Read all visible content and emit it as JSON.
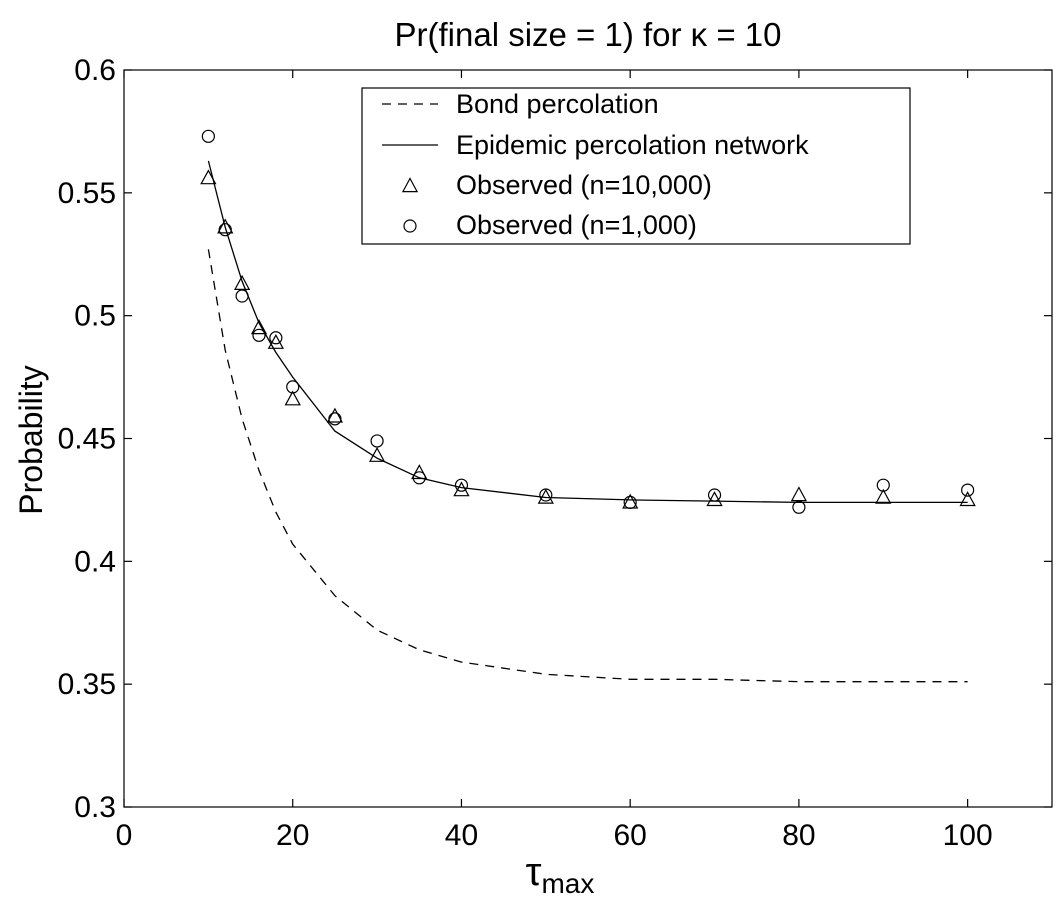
{
  "chart_data": {
    "type": "line",
    "title": "Pr(final size = 1) for κ = 10",
    "xlabel_main": "τ",
    "xlabel_sub": "max",
    "ylabel": "Probability",
    "xlim": [
      0,
      110
    ],
    "ylim": [
      0.3,
      0.6
    ],
    "x_ticks": [
      0,
      20,
      40,
      60,
      80,
      100
    ],
    "x_tick_labels": [
      "0",
      "20",
      "40",
      "60",
      "80",
      "100"
    ],
    "y_ticks": [
      0.3,
      0.35,
      0.4,
      0.45,
      0.5,
      0.55,
      0.6
    ],
    "y_tick_labels": [
      "0.3",
      "0.35",
      "0.4",
      "0.45",
      "0.5",
      "0.55",
      "0.6"
    ],
    "grid": false,
    "legend_position": "top-right",
    "series": [
      {
        "name": "Bond percolation",
        "style": "dashed-line",
        "x": [
          10,
          12,
          14,
          16,
          18,
          20,
          25,
          30,
          35,
          40,
          50,
          60,
          70,
          80,
          90,
          100
        ],
        "y": [
          0.527,
          0.486,
          0.458,
          0.437,
          0.42,
          0.407,
          0.386,
          0.372,
          0.364,
          0.359,
          0.354,
          0.352,
          0.352,
          0.351,
          0.351,
          0.351
        ]
      },
      {
        "name": "Epidemic percolation network",
        "style": "solid-line",
        "x": [
          10,
          12,
          14,
          16,
          18,
          20,
          25,
          30,
          35,
          40,
          50,
          60,
          70,
          80,
          90,
          100
        ],
        "y": [
          0.563,
          0.536,
          0.514,
          0.497,
          0.485,
          0.475,
          0.453,
          0.442,
          0.434,
          0.43,
          0.426,
          0.425,
          0.4245,
          0.424,
          0.424,
          0.424
        ]
      },
      {
        "name": "Observed (n=10,000)",
        "style": "triangle-marker",
        "x": [
          10,
          12,
          14,
          16,
          18,
          20,
          25,
          30,
          35,
          40,
          50,
          60,
          70,
          80,
          90,
          100
        ],
        "y": [
          0.556,
          0.536,
          0.513,
          0.495,
          0.489,
          0.466,
          0.459,
          0.443,
          0.436,
          0.429,
          0.426,
          0.424,
          0.425,
          0.427,
          0.426,
          0.425
        ]
      },
      {
        "name": "Observed (n=1,000)",
        "style": "circle-marker",
        "x": [
          10,
          12,
          14,
          16,
          18,
          20,
          25,
          30,
          35,
          40,
          50,
          60,
          70,
          80,
          90,
          100
        ],
        "y": [
          0.573,
          0.535,
          0.508,
          0.492,
          0.491,
          0.471,
          0.458,
          0.449,
          0.434,
          0.431,
          0.427,
          0.424,
          0.427,
          0.422,
          0.431,
          0.429
        ]
      }
    ]
  }
}
